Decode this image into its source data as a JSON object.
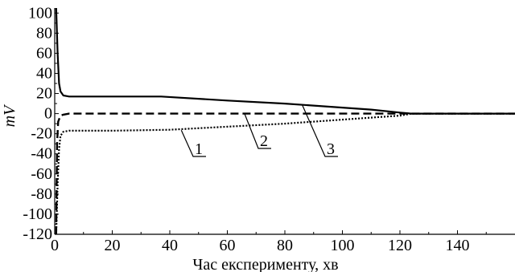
{
  "chart_data": {
    "type": "line",
    "title": "",
    "xlabel": "Час експерименту, хв",
    "ylabel": "mV",
    "xlim": [
      0,
      160
    ],
    "ylim": [
      -120,
      105
    ],
    "x_ticks": [
      0,
      20,
      40,
      60,
      80,
      100,
      120,
      140
    ],
    "y_ticks": [
      100,
      80,
      60,
      40,
      20,
      0,
      -20,
      -40,
      -60,
      -80,
      -100,
      -120
    ],
    "grid": false,
    "series": [
      {
        "name": "1",
        "style": "dotted",
        "points": [
          [
            0.5,
            -120
          ],
          [
            1,
            -70
          ],
          [
            1.5,
            -35
          ],
          [
            2,
            -22
          ],
          [
            3,
            -18
          ],
          [
            5,
            -17
          ],
          [
            20,
            -17
          ],
          [
            40,
            -16
          ],
          [
            60,
            -13
          ],
          [
            80,
            -10
          ],
          [
            100,
            -6
          ],
          [
            110,
            -4
          ],
          [
            120,
            -2
          ],
          [
            124,
            0
          ],
          [
            160,
            0
          ]
        ]
      },
      {
        "name": "2",
        "style": "dashed",
        "points": [
          [
            0.5,
            -120
          ],
          [
            0.8,
            -30
          ],
          [
            1.2,
            -8
          ],
          [
            2,
            -2
          ],
          [
            3,
            -1
          ],
          [
            5,
            0
          ],
          [
            160,
            0
          ]
        ]
      },
      {
        "name": "3",
        "style": "solid",
        "points": [
          [
            0.5,
            105
          ],
          [
            1,
            60
          ],
          [
            1.5,
            30
          ],
          [
            2,
            22
          ],
          [
            3,
            18
          ],
          [
            5,
            17
          ],
          [
            20,
            17
          ],
          [
            37,
            17
          ],
          [
            60,
            13
          ],
          [
            80,
            10
          ],
          [
            100,
            6
          ],
          [
            110,
            4
          ],
          [
            120,
            1
          ],
          [
            124,
            0
          ],
          [
            160,
            0
          ]
        ]
      }
    ],
    "annotations": [
      "1",
      "2",
      "3"
    ]
  }
}
